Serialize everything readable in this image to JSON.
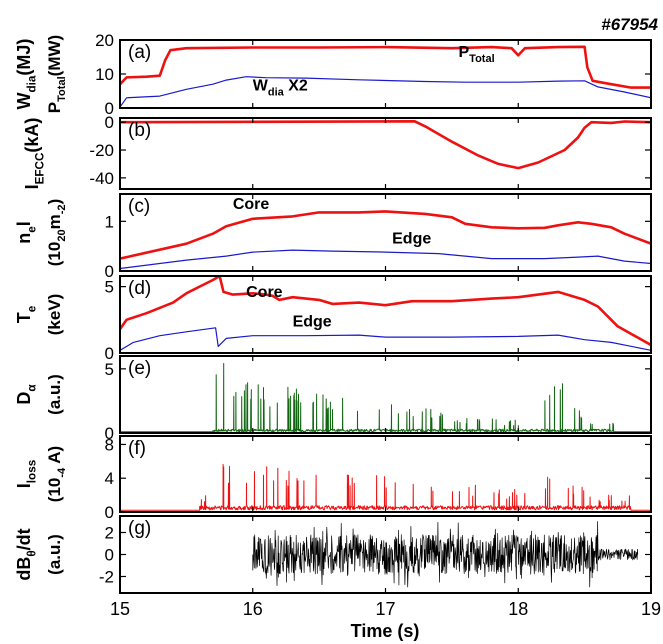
{
  "shot_label": "#67954",
  "xaxis": {
    "label": "Time (s)",
    "range": [
      15,
      19
    ],
    "ticks": [
      15,
      16,
      17,
      18,
      19
    ]
  },
  "chart_data": [
    {
      "panel": "(a)",
      "type": "line",
      "ylabel": [
        "W",
        "dia",
        "(MJ)"
      ],
      "ylabel2": [
        "P",
        "Total",
        "(MW)"
      ],
      "ylim": [
        0,
        20
      ],
      "yticks": [
        0,
        10,
        20
      ],
      "annotations": [
        {
          "base": "P",
          "sub": "Total",
          "x": 17.55,
          "y": 15,
          "color": "#000"
        },
        {
          "base": "W",
          "sub": "dia",
          "x": 16.0,
          "y": 5.2,
          "color": "#000",
          "extra": " X2"
        }
      ],
      "series": [
        {
          "color": "#ee1111",
          "width": 2.6,
          "points": [
            [
              15,
              7
            ],
            [
              15.05,
              9
            ],
            [
              15.2,
              9.2
            ],
            [
              15.3,
              9.5
            ],
            [
              15.34,
              14
            ],
            [
              15.38,
              17
            ],
            [
              15.5,
              17.6
            ],
            [
              16,
              17.8
            ],
            [
              16.5,
              17.8
            ],
            [
              17,
              17.9
            ],
            [
              17.5,
              17.6
            ],
            [
              17.8,
              17.9
            ],
            [
              17.95,
              17.6
            ],
            [
              18.0,
              15.5
            ],
            [
              18.05,
              17.6
            ],
            [
              18.3,
              17.9
            ],
            [
              18.5,
              18.0
            ],
            [
              18.52,
              12
            ],
            [
              18.56,
              8
            ],
            [
              18.7,
              7
            ],
            [
              18.85,
              6
            ],
            [
              19,
              6
            ]
          ]
        },
        {
          "color": "#1a1acc",
          "width": 1.2,
          "points": [
            [
              15,
              0.3
            ],
            [
              15.05,
              3
            ],
            [
              15.3,
              3.5
            ],
            [
              15.5,
              5.5
            ],
            [
              15.7,
              7
            ],
            [
              15.8,
              8.2
            ],
            [
              15.95,
              9.2
            ],
            [
              16.1,
              8.9
            ],
            [
              16.4,
              8.8
            ],
            [
              16.8,
              8.3
            ],
            [
              17,
              8.1
            ],
            [
              17.3,
              7.8
            ],
            [
              17.6,
              7.6
            ],
            [
              18.0,
              7.6
            ],
            [
              18.3,
              7.9
            ],
            [
              18.5,
              8.0
            ],
            [
              18.6,
              6.2
            ],
            [
              18.8,
              4.7
            ],
            [
              19,
              3
            ]
          ]
        }
      ]
    },
    {
      "panel": "(b)",
      "type": "line",
      "ylabel": [
        "I",
        "EFCC",
        "(kA)"
      ],
      "ylim": [
        -48,
        3
      ],
      "yticks": [
        -40,
        -20,
        0
      ],
      "series": [
        {
          "color": "#ee1111",
          "width": 2.6,
          "points": [
            [
              15,
              0
            ],
            [
              17.22,
              0.6
            ],
            [
              17.3,
              -3
            ],
            [
              17.5,
              -14
            ],
            [
              17.7,
              -24
            ],
            [
              17.85,
              -30
            ],
            [
              18.0,
              -33
            ],
            [
              18.15,
              -29
            ],
            [
              18.35,
              -20
            ],
            [
              18.45,
              -11
            ],
            [
              18.5,
              -4
            ],
            [
              18.55,
              0
            ],
            [
              18.7,
              -0.5
            ],
            [
              18.8,
              0.5
            ],
            [
              19,
              0
            ]
          ]
        }
      ]
    },
    {
      "panel": "(c)",
      "type": "line",
      "ylabel": [
        "n",
        "e",
        "l"
      ],
      "ylabel2": [
        "(10",
        "20",
        "m",
        "-2",
        ")"
      ],
      "ylim": [
        0,
        1.55
      ],
      "yticks": [
        0,
        1
      ],
      "annotations": [
        {
          "text": "Core",
          "x": 15.85,
          "y": 1.25,
          "color": "#000"
        },
        {
          "text": "Edge",
          "x": 17.05,
          "y": 0.55,
          "color": "#000"
        }
      ],
      "series": [
        {
          "color": "#ee1111",
          "width": 2.6,
          "points": [
            [
              15,
              0.25
            ],
            [
              15.5,
              0.55
            ],
            [
              15.7,
              0.75
            ],
            [
              15.8,
              0.9
            ],
            [
              16.0,
              1.05
            ],
            [
              16.3,
              1.1
            ],
            [
              16.5,
              1.18
            ],
            [
              16.8,
              1.18
            ],
            [
              17.0,
              1.2
            ],
            [
              17.3,
              1.15
            ],
            [
              17.5,
              1.08
            ],
            [
              17.6,
              0.95
            ],
            [
              17.8,
              0.88
            ],
            [
              18.0,
              0.86
            ],
            [
              18.2,
              0.87
            ],
            [
              18.3,
              0.92
            ],
            [
              18.45,
              0.98
            ],
            [
              18.55,
              0.95
            ],
            [
              18.7,
              0.88
            ],
            [
              18.8,
              0.75
            ],
            [
              19,
              0.55
            ]
          ]
        },
        {
          "color": "#1a1acc",
          "width": 1.2,
          "points": [
            [
              15,
              0.05
            ],
            [
              15.5,
              0.22
            ],
            [
              15.8,
              0.3
            ],
            [
              16.0,
              0.38
            ],
            [
              16.3,
              0.42
            ],
            [
              16.6,
              0.4
            ],
            [
              17.0,
              0.38
            ],
            [
              17.4,
              0.35
            ],
            [
              17.6,
              0.3
            ],
            [
              17.8,
              0.25
            ],
            [
              18.2,
              0.25
            ],
            [
              18.45,
              0.28
            ],
            [
              18.6,
              0.3
            ],
            [
              18.8,
              0.2
            ],
            [
              19,
              0.15
            ]
          ]
        }
      ]
    },
    {
      "panel": "(d)",
      "type": "line",
      "ylabel": [
        "T",
        "e",
        ""
      ],
      "ylabel2": [
        "(keV)"
      ],
      "ylim": [
        0,
        5.8
      ],
      "yticks": [
        0,
        5
      ],
      "annotations": [
        {
          "text": "Core",
          "x": 15.95,
          "y": 4.2,
          "color": "#000"
        },
        {
          "text": "Edge",
          "x": 16.3,
          "y": 2.0,
          "color": "#000"
        }
      ],
      "series": [
        {
          "color": "#ee1111",
          "width": 2.6,
          "points": [
            [
              15,
              1.8
            ],
            [
              15.05,
              2.5
            ],
            [
              15.2,
              3.0
            ],
            [
              15.4,
              3.8
            ],
            [
              15.5,
              4.5
            ],
            [
              15.6,
              5.0
            ],
            [
              15.7,
              5.5
            ],
            [
              15.75,
              5.8
            ],
            [
              15.78,
              4.6
            ],
            [
              15.85,
              4.4
            ],
            [
              16.0,
              4.5
            ],
            [
              16.1,
              4.4
            ],
            [
              16.15,
              4.3
            ],
            [
              16.2,
              4.0
            ],
            [
              16.3,
              4.2
            ],
            [
              16.5,
              4.0
            ],
            [
              16.6,
              3.7
            ],
            [
              16.8,
              3.8
            ],
            [
              17.0,
              3.6
            ],
            [
              17.2,
              3.9
            ],
            [
              17.5,
              3.9
            ],
            [
              17.8,
              4.1
            ],
            [
              18.0,
              4.2
            ],
            [
              18.3,
              4.6
            ],
            [
              18.5,
              4.0
            ],
            [
              18.6,
              3.5
            ],
            [
              18.75,
              2.0
            ],
            [
              19,
              0.6
            ]
          ]
        },
        {
          "color": "#1a1acc",
          "width": 1.2,
          "points": [
            [
              15,
              0.2
            ],
            [
              15.1,
              0.8
            ],
            [
              15.3,
              1.3
            ],
            [
              15.5,
              1.6
            ],
            [
              15.72,
              1.9
            ],
            [
              15.74,
              0.5
            ],
            [
              15.8,
              1.1
            ],
            [
              16.0,
              1.3
            ],
            [
              16.4,
              1.3
            ],
            [
              16.8,
              1.35
            ],
            [
              17.0,
              1.2
            ],
            [
              17.5,
              1.2
            ],
            [
              18.0,
              1.25
            ],
            [
              18.3,
              1.35
            ],
            [
              18.5,
              1.0
            ],
            [
              18.7,
              0.8
            ],
            [
              19,
              0.2
            ]
          ]
        }
      ]
    },
    {
      "panel": "(e)",
      "type": "line",
      "ylabel": [
        "D",
        "α",
        ""
      ],
      "ylabel2": [
        "(a.u.)"
      ],
      "ylim": [
        0,
        6
      ],
      "yticks": [
        0,
        5
      ],
      "series": [
        {
          "color": "#116611",
          "width": 1.0,
          "spikes": {
            "start": 15.7,
            "end": 18.72,
            "base": 0.2,
            "tail": 0.1,
            "peaks": [
              [
                15.72,
                6
              ],
              [
                15.75,
                5
              ],
              [
                15.8,
                6
              ],
              [
                15.85,
                4
              ],
              [
                15.9,
                5
              ],
              [
                16.0,
                4
              ],
              [
                16.1,
                3.5
              ],
              [
                16.3,
                3.8
              ],
              [
                16.5,
                3
              ],
              [
                16.7,
                3
              ],
              [
                17.0,
                2.5
              ],
              [
                17.3,
                2
              ],
              [
                17.6,
                1.2
              ],
              [
                18.0,
                1
              ],
              [
                18.25,
                3.5
              ],
              [
                18.35,
                4
              ],
              [
                18.5,
                1
              ]
            ],
            "seed": 7
          }
        }
      ]
    },
    {
      "panel": "(f)",
      "type": "line",
      "ylabel": [
        "I",
        "loss",
        ""
      ],
      "ylabel2": [
        "(10",
        "-4",
        " A)"
      ],
      "ylim": [
        0,
        9
      ],
      "yticks": [
        0,
        4,
        8
      ],
      "series": [
        {
          "color": "#ee1111",
          "width": 1.0,
          "spikes": {
            "start": 15.6,
            "end": 18.85,
            "base": 0.5,
            "tail": 0.2,
            "peaks": [
              [
                15.75,
                6.5
              ],
              [
                15.9,
                5.5
              ],
              [
                16.2,
                5.3
              ],
              [
                16.5,
                4.5
              ],
              [
                16.8,
                4.5
              ],
              [
                17.0,
                4.5
              ],
              [
                17.3,
                4
              ],
              [
                17.6,
                3.5
              ],
              [
                17.9,
                2.5
              ],
              [
                18.2,
                4.5
              ],
              [
                18.45,
                3.5
              ],
              [
                18.6,
                2
              ]
            ],
            "seed": 13
          }
        }
      ]
    },
    {
      "panel": "(g)",
      "type": "line",
      "ylabel": [
        "dB",
        "θ",
        "/dt"
      ],
      "ylabel2": [
        "(a.u.)"
      ],
      "ylim": [
        -3.5,
        3.5
      ],
      "yticks": [
        -2,
        0,
        2
      ],
      "series": [
        {
          "color": "#000000",
          "width": 0.7,
          "noise": {
            "start": 16.0,
            "end": 18.9,
            "amp": 3.0,
            "tailStart": 18.6,
            "tailAmp": 0.5,
            "seed": 21
          }
        }
      ]
    }
  ]
}
